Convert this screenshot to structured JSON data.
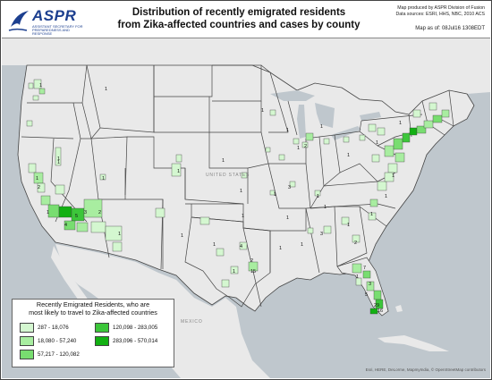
{
  "header": {
    "logo_text": "ASPR",
    "logo_sub": "ASSISTANT SECRETARY FOR PREPAREDNESS AND RESPONSE",
    "title_line1": "Distribution of recently emigrated residents",
    "title_line2": "from Zika-affected countries and cases by county",
    "credit_line1": "Map produced by ASPR Division of Fusion",
    "credit_line2": "Data sources: ESRI, HHS, NBC, 2010 ACS",
    "map_date": "Map as of: 08Jul16 1308EDT"
  },
  "map": {
    "country_labels": {
      "usa": "UNITED STATES",
      "mexico": "MEXICO"
    },
    "land_color": "#e9e9e9",
    "water_color": "#bfc7cd",
    "state_border_color": "#444444",
    "case_counts": [
      {
        "id": "wa-1",
        "text": "1"
      },
      {
        "id": "id-1",
        "text": "1"
      },
      {
        "id": "or-1",
        "text": "1"
      },
      {
        "id": "ca-1",
        "text": "1"
      },
      {
        "id": "ca-2",
        "text": "2"
      },
      {
        "id": "ca-3",
        "text": "3"
      },
      {
        "id": "ca-4",
        "text": "4"
      },
      {
        "id": "ca-5",
        "text": "5"
      },
      {
        "id": "ca-1b",
        "text": "1"
      },
      {
        "id": "nv-1",
        "text": "1"
      },
      {
        "id": "az-2",
        "text": "2"
      },
      {
        "id": "az-1",
        "text": "1"
      },
      {
        "id": "ut-1",
        "text": "1"
      },
      {
        "id": "co-1",
        "text": "1"
      },
      {
        "id": "nm-1",
        "text": "1"
      },
      {
        "id": "tx-1",
        "text": "1"
      },
      {
        "id": "tx-4",
        "text": "4"
      },
      {
        "id": "tx-1b",
        "text": "1"
      },
      {
        "id": "tx-2",
        "text": "2"
      },
      {
        "id": "tx-15",
        "text": "15"
      },
      {
        "id": "mn-1",
        "text": "1"
      },
      {
        "id": "wi-1",
        "text": "1"
      },
      {
        "id": "mi-1",
        "text": "1"
      },
      {
        "id": "il-1",
        "text": "1"
      },
      {
        "id": "il-2",
        "text": "2"
      },
      {
        "id": "ks-1",
        "text": "1"
      },
      {
        "id": "mo-3",
        "text": "3"
      },
      {
        "id": "mo-1",
        "text": "1"
      },
      {
        "id": "ky-1",
        "text": "1"
      },
      {
        "id": "tn-1",
        "text": "1"
      },
      {
        "id": "ok-1",
        "text": "1"
      },
      {
        "id": "ar-1",
        "text": "1"
      },
      {
        "id": "la-1",
        "text": "1"
      },
      {
        "id": "ms-1",
        "text": "1"
      },
      {
        "id": "al-3",
        "text": "3"
      },
      {
        "id": "ga-1",
        "text": "1"
      },
      {
        "id": "ga-2",
        "text": "2"
      },
      {
        "id": "sc-1",
        "text": "1"
      },
      {
        "id": "nc-1",
        "text": "1"
      },
      {
        "id": "va-1",
        "text": "1"
      },
      {
        "id": "fl-7",
        "text": "7"
      },
      {
        "id": "fl-1",
        "text": "1"
      },
      {
        "id": "fl-3",
        "text": "3"
      },
      {
        "id": "fl-5",
        "text": "5"
      },
      {
        "id": "fl-29",
        "text": "29"
      },
      {
        "id": "fl-16",
        "text": "16"
      },
      {
        "id": "ny-1",
        "text": "1"
      },
      {
        "id": "pa-1",
        "text": "1"
      },
      {
        "id": "oh-1",
        "text": "1"
      },
      {
        "id": "ne-1",
        "text": "1"
      }
    ]
  },
  "legend": {
    "title_line1": "Recently Emigrated Residents, who are",
    "title_line2": "most likely to travel to Zika-affected countries",
    "items": [
      {
        "label": "287 - 18,076",
        "color": "#d4f7d0"
      },
      {
        "label": "18,080 - 57,240",
        "color": "#a8eda0"
      },
      {
        "label": "57,217 - 120,082",
        "color": "#78dd70"
      },
      {
        "label": "120,098 - 283,005",
        "color": "#3cc63a"
      },
      {
        "label": "283,096 - 570,014",
        "color": "#12b012"
      }
    ]
  },
  "footer": {
    "esri_credit": "Esri, HERE, DeLorme, MapmyIndia, © OpenStreetMap contributors"
  }
}
